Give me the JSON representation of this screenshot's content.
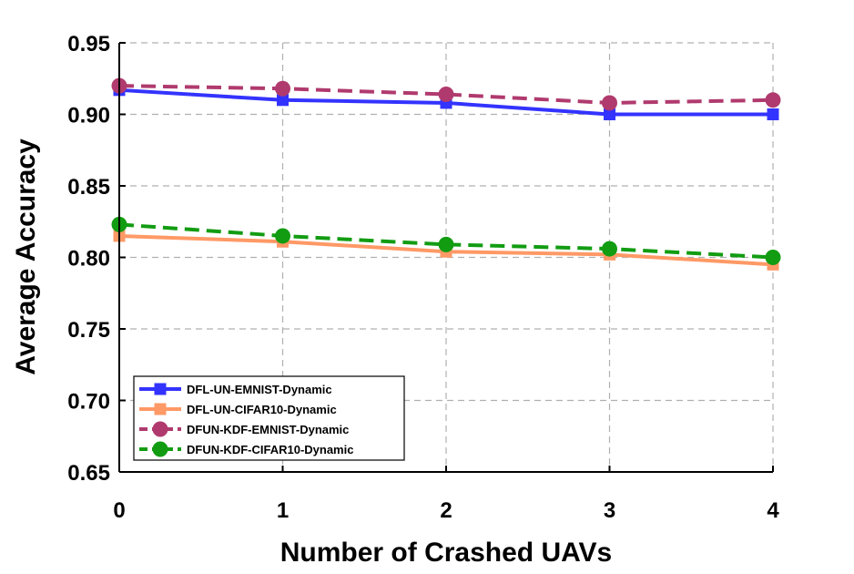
{
  "chart_data": {
    "type": "line",
    "title": "",
    "xlabel": "Number of Crashed UAVs",
    "ylabel": "Average Accuracy",
    "x": [
      0,
      1,
      2,
      3,
      4
    ],
    "xlim": [
      0,
      4
    ],
    "ylim": [
      0.65,
      0.95
    ],
    "xticks": [
      "0",
      "1",
      "2",
      "3",
      "4"
    ],
    "yticks": [
      "0.65",
      "0.70",
      "0.75",
      "0.80",
      "0.85",
      "0.90",
      "0.95"
    ],
    "grid": true,
    "legend_position": "bottom-left",
    "series": [
      {
        "name": "DFL-UN-EMNIST-Dynamic",
        "values": [
          0.917,
          0.91,
          0.908,
          0.9,
          0.9
        ],
        "color": "#3333ff",
        "marker": "square",
        "dash": "solid"
      },
      {
        "name": "DFL-UN-CIFAR10-Dynamic",
        "values": [
          0.815,
          0.811,
          0.804,
          0.802,
          0.795
        ],
        "color": "#ff9966",
        "marker": "square",
        "dash": "solid"
      },
      {
        "name": "DFUN-KDF-EMNIST-Dynamic",
        "values": [
          0.92,
          0.918,
          0.914,
          0.908,
          0.91
        ],
        "color": "#b03a6e",
        "marker": "circle",
        "dash": "dashed"
      },
      {
        "name": "DFUN-KDF-CIFAR10-Dynamic",
        "values": [
          0.823,
          0.815,
          0.809,
          0.806,
          0.8
        ],
        "color": "#129c12",
        "marker": "circle",
        "dash": "dashed"
      }
    ]
  }
}
